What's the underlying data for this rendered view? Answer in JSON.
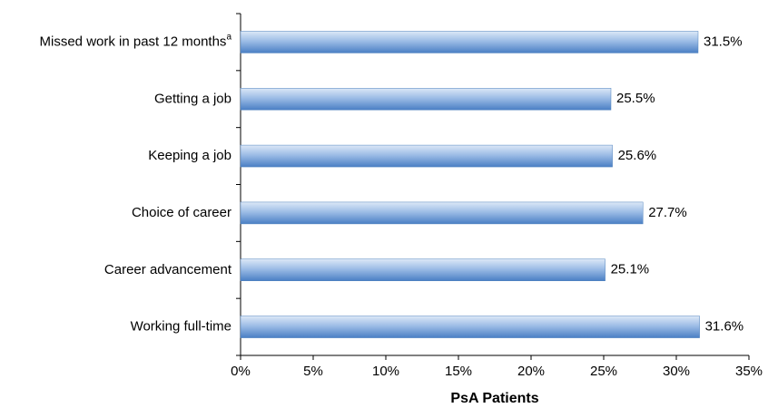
{
  "chart_data": {
    "type": "bar",
    "orientation": "horizontal",
    "x_label": "PsA Patients",
    "categories": [
      "Missed work in past 12 months",
      "Getting a job",
      "Keeping a job",
      "Choice of career",
      "Career advancement",
      "Working full-time"
    ],
    "category_superscripts": [
      "a",
      null,
      null,
      null,
      null,
      null
    ],
    "values": [
      31.5,
      25.5,
      25.6,
      27.7,
      25.1,
      31.6
    ],
    "value_labels": [
      "31.5%",
      "25.5%",
      "25.6%",
      "27.7%",
      "25.1%",
      "31.6%"
    ],
    "color": "#4f81bd",
    "xlim": [
      0,
      35
    ],
    "xticks": [
      {
        "value": 0,
        "label": "0%"
      },
      {
        "value": 5,
        "label": "5%"
      },
      {
        "value": 10,
        "label": "10%"
      },
      {
        "value": 15,
        "label": "15%"
      },
      {
        "value": 20,
        "label": "20%"
      },
      {
        "value": 25,
        "label": "25%"
      },
      {
        "value": 30,
        "label": "30%"
      },
      {
        "value": 35,
        "label": "35%"
      }
    ],
    "grid": false
  }
}
